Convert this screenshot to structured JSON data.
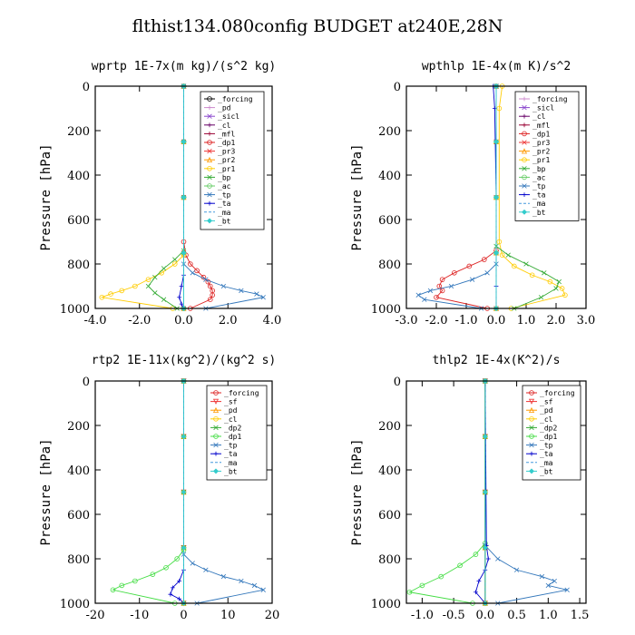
{
  "suptitle": "flthist134.080config  BUDGET at240E,28N",
  "chart_data": [
    {
      "type": "line",
      "title": "wprtp  1E-7x(m kg)/(s^2 kg)",
      "ylabel": "Pressure [hPa]",
      "xlim": [
        -4.0,
        4.0
      ],
      "ylim": [
        1000,
        0
      ],
      "xticks": [
        "-4.0",
        "-2.0",
        "0.0",
        "2.0",
        "4.0"
      ],
      "yticks": [
        "0",
        "200",
        "400",
        "600",
        "800",
        "1000"
      ],
      "legend_position": "top-right",
      "series": [
        {
          "name": "_forcing",
          "color": "#000000",
          "marker": "o",
          "x": [
            0,
            0,
            0,
            0,
            0
          ],
          "y": [
            0,
            250,
            500,
            750,
            1000
          ]
        },
        {
          "name": "_pd",
          "color": "#cc88cc",
          "marker": "+",
          "x": [
            0,
            0,
            0,
            0,
            0
          ],
          "y": [
            0,
            250,
            500,
            750,
            1000
          ]
        },
        {
          "name": "_sicl",
          "color": "#8844cc",
          "marker": "x",
          "x": [
            0,
            0,
            0,
            0,
            0
          ],
          "y": [
            0,
            250,
            500,
            750,
            1000
          ]
        },
        {
          "name": "_cl",
          "color": "#660066",
          "marker": "+",
          "x": [
            0,
            0,
            0,
            0,
            0
          ],
          "y": [
            0,
            250,
            500,
            750,
            1000
          ]
        },
        {
          "name": "_mfl",
          "color": "#990033",
          "marker": "+",
          "x": [
            0,
            0,
            0,
            0,
            0
          ],
          "y": [
            0,
            250,
            500,
            750,
            1000
          ]
        },
        {
          "name": "_dp1",
          "color": "#dd2222",
          "marker": "o",
          "x": [
            0,
            0,
            0.1,
            0.3,
            0.6,
            0.9,
            1.1,
            1.2,
            1.3,
            1.3,
            1.2,
            0.3
          ],
          "y": [
            0,
            700,
            760,
            800,
            830,
            860,
            880,
            900,
            920,
            940,
            960,
            1000
          ]
        },
        {
          "name": "_pr3",
          "color": "#ee3333",
          "marker": "x",
          "x": [
            0,
            0,
            0,
            0,
            0
          ],
          "y": [
            0,
            250,
            500,
            750,
            1000
          ]
        },
        {
          "name": "_pr2",
          "color": "#ff9900",
          "marker": "^",
          "x": [
            0,
            0,
            0,
            0,
            0
          ],
          "y": [
            0,
            250,
            500,
            750,
            1000
          ]
        },
        {
          "name": "_pr1",
          "color": "#ffcc00",
          "marker": "o",
          "x": [
            0,
            0,
            -0.4,
            -1.0,
            -1.6,
            -2.2,
            -2.8,
            -3.3,
            -3.7,
            -0.5
          ],
          "y": [
            0,
            760,
            800,
            840,
            870,
            900,
            920,
            935,
            950,
            1000
          ]
        },
        {
          "name": "_bp",
          "color": "#33aa33",
          "marker": "x",
          "x": [
            0,
            0,
            -0.4,
            -0.9,
            -1.3,
            -1.6,
            -1.3,
            -0.9,
            -0.3
          ],
          "y": [
            0,
            740,
            780,
            820,
            860,
            900,
            930,
            960,
            1000
          ]
        },
        {
          "name": "_ac",
          "color": "#66cc66",
          "marker": "o",
          "x": [
            0,
            0,
            0,
            0,
            0
          ],
          "y": [
            0,
            250,
            500,
            750,
            1000
          ]
        },
        {
          "name": "_tp",
          "color": "#3377bb",
          "marker": "x",
          "x": [
            0,
            0,
            0.4,
            1.0,
            1.8,
            2.6,
            3.3,
            3.6,
            1.0
          ],
          "y": [
            0,
            800,
            840,
            870,
            900,
            920,
            935,
            950,
            1000
          ]
        },
        {
          "name": "_ta",
          "color": "#0000cc",
          "marker": "+",
          "x": [
            0,
            0,
            -0.1,
            -0.2,
            -0.1,
            0
          ],
          "y": [
            0,
            850,
            900,
            950,
            980,
            1000
          ]
        },
        {
          "name": "_ma",
          "color": "#4499dd",
          "marker": "-",
          "x": [
            0,
            0,
            0,
            0,
            0
          ],
          "y": [
            0,
            250,
            500,
            750,
            1000
          ]
        },
        {
          "name": "_bt",
          "color": "#33cccc",
          "marker": "D",
          "x": [
            0,
            0,
            0,
            0,
            0
          ],
          "y": [
            0,
            250,
            500,
            750,
            1000
          ]
        }
      ]
    },
    {
      "type": "line",
      "title": "wpthlp  1E-4x(m K)/s^2",
      "ylabel": "Pressure [hPa]",
      "xlim": [
        -3.0,
        3.0
      ],
      "ylim": [
        1000,
        0
      ],
      "xticks": [
        "-3.0",
        "-2.0",
        "-1.0",
        "0.0",
        "1.0",
        "2.0",
        "3.0"
      ],
      "yticks": [
        "0",
        "200",
        "400",
        "600",
        "800",
        "1000"
      ],
      "legend_position": "top-right",
      "series": [
        {
          "name": "_forcing",
          "color": "#cc88cc",
          "marker": "+",
          "x": [
            0,
            0,
            0,
            0,
            0
          ],
          "y": [
            0,
            250,
            500,
            750,
            1000
          ]
        },
        {
          "name": "_sicl",
          "color": "#8844cc",
          "marker": "x",
          "x": [
            0,
            0,
            0,
            0,
            0
          ],
          "y": [
            0,
            250,
            500,
            750,
            1000
          ]
        },
        {
          "name": "_cl",
          "color": "#660066",
          "marker": "+",
          "x": [
            0,
            0,
            0,
            0,
            0
          ],
          "y": [
            0,
            250,
            500,
            750,
            1000
          ]
        },
        {
          "name": "_mfl",
          "color": "#990033",
          "marker": "+",
          "x": [
            0,
            0,
            0,
            0,
            0
          ],
          "y": [
            0,
            250,
            500,
            750,
            1000
          ]
        },
        {
          "name": "_dp1",
          "color": "#dd2222",
          "marker": "o",
          "x": [
            0,
            0,
            -0.4,
            -0.9,
            -1.4,
            -1.8,
            -1.9,
            -1.8,
            -2.0,
            -0.3
          ],
          "y": [
            0,
            740,
            780,
            810,
            840,
            870,
            900,
            920,
            950,
            1000
          ]
        },
        {
          "name": "_pr3",
          "color": "#ee3333",
          "marker": "x",
          "x": [
            0,
            0,
            0,
            0,
            0
          ],
          "y": [
            0,
            250,
            500,
            750,
            1000
          ]
        },
        {
          "name": "_pr2",
          "color": "#ff9900",
          "marker": "^",
          "x": [
            0,
            0,
            0,
            0,
            0
          ],
          "y": [
            0,
            250,
            500,
            750,
            1000
          ]
        },
        {
          "name": "_pr1",
          "color": "#ffcc00",
          "marker": "o",
          "x": [
            0.2,
            0.1,
            0.1,
            0.2,
            0.6,
            1.2,
            1.8,
            2.2,
            2.3,
            0.5
          ],
          "y": [
            0,
            100,
            700,
            760,
            810,
            850,
            880,
            910,
            940,
            1000
          ]
        },
        {
          "name": "_bp",
          "color": "#33aa33",
          "marker": "x",
          "x": [
            0,
            0,
            0.4,
            1.0,
            1.6,
            2.1,
            2.0,
            1.5,
            0.6
          ],
          "y": [
            0,
            720,
            760,
            800,
            840,
            880,
            910,
            950,
            1000
          ]
        },
        {
          "name": "_ac",
          "color": "#66cc66",
          "marker": "o",
          "x": [
            0,
            0,
            0,
            0,
            0
          ],
          "y": [
            0,
            250,
            500,
            750,
            1000
          ]
        },
        {
          "name": "_tp",
          "color": "#3377bb",
          "marker": "x",
          "x": [
            0,
            0,
            -0.3,
            -0.8,
            -1.5,
            -2.2,
            -2.6,
            -2.4,
            -0.5
          ],
          "y": [
            0,
            800,
            840,
            870,
            900,
            920,
            940,
            960,
            1000
          ]
        },
        {
          "name": "_ta",
          "color": "#0000cc",
          "marker": "+",
          "x": [
            -0.1,
            -0.05,
            0,
            0,
            0
          ],
          "y": [
            0,
            100,
            500,
            900,
            1000
          ]
        },
        {
          "name": "_ma",
          "color": "#4499dd",
          "marker": "-",
          "x": [
            0,
            0,
            0,
            0,
            0
          ],
          "y": [
            0,
            250,
            500,
            750,
            1000
          ]
        },
        {
          "name": "_bt",
          "color": "#33cccc",
          "marker": "D",
          "x": [
            0,
            0,
            0,
            0,
            0
          ],
          "y": [
            0,
            250,
            500,
            750,
            1000
          ]
        }
      ]
    },
    {
      "type": "line",
      "title": "rtp2  1E-11x(kg^2)/(kg^2 s)",
      "ylabel": "Pressure [hPa]",
      "xlim": [
        -20,
        20
      ],
      "ylim": [
        1000,
        0
      ],
      "xticks": [
        "-20",
        "-10",
        "0",
        "10",
        "20"
      ],
      "yticks": [
        "0",
        "200",
        "400",
        "600",
        "800",
        "1000"
      ],
      "legend_position": "top-right",
      "series": [
        {
          "name": "_forcing",
          "color": "#dd2222",
          "marker": "o",
          "x": [
            0,
            0,
            0,
            0,
            0
          ],
          "y": [
            0,
            250,
            500,
            750,
            1000
          ]
        },
        {
          "name": "_sf",
          "color": "#ee3333",
          "marker": "v",
          "x": [
            0,
            0,
            0,
            0,
            0
          ],
          "y": [
            0,
            250,
            500,
            750,
            1000
          ]
        },
        {
          "name": "_pd",
          "color": "#ff9900",
          "marker": "^",
          "x": [
            0,
            0,
            0,
            0,
            0
          ],
          "y": [
            0,
            250,
            500,
            750,
            1000
          ]
        },
        {
          "name": "_cl",
          "color": "#ffcc00",
          "marker": "o",
          "x": [
            0,
            0,
            0,
            0,
            0
          ],
          "y": [
            0,
            250,
            500,
            750,
            1000
          ]
        },
        {
          "name": "_dp2",
          "color": "#33aa33",
          "marker": "x",
          "x": [
            0,
            0,
            0,
            0,
            0
          ],
          "y": [
            0,
            250,
            500,
            750,
            1000
          ]
        },
        {
          "name": "_dp1",
          "color": "#44dd44",
          "marker": "o",
          "x": [
            0,
            0,
            -1.5,
            -4,
            -7,
            -11,
            -14,
            -16,
            -2
          ],
          "y": [
            0,
            760,
            800,
            840,
            870,
            900,
            920,
            940,
            1000
          ]
        },
        {
          "name": "_tp",
          "color": "#3377bb",
          "marker": "x",
          "x": [
            0,
            0,
            2,
            5,
            9,
            13,
            16,
            18,
            3
          ],
          "y": [
            0,
            780,
            820,
            850,
            880,
            900,
            920,
            940,
            1000
          ]
        },
        {
          "name": "_ta",
          "color": "#0000cc",
          "marker": "+",
          "x": [
            0,
            0,
            -1,
            -2.5,
            -3,
            -1,
            0
          ],
          "y": [
            0,
            850,
            900,
            930,
            960,
            980,
            1000
          ]
        },
        {
          "name": "_ma",
          "color": "#4499dd",
          "marker": "-",
          "x": [
            0,
            0,
            0,
            0,
            0
          ],
          "y": [
            0,
            250,
            500,
            750,
            1000
          ]
        },
        {
          "name": "_bt",
          "color": "#33cccc",
          "marker": "D",
          "x": [
            0,
            0,
            0,
            0,
            0
          ],
          "y": [
            0,
            250,
            500,
            750,
            1000
          ]
        }
      ]
    },
    {
      "type": "line",
      "title": "thlp2  1E-4x(K^2)/s",
      "ylabel": "Pressure [hPa]",
      "xlim": [
        -1.25,
        1.6
      ],
      "ylim": [
        1000,
        0
      ],
      "xticks": [
        "-1.0",
        "-0.5",
        "0.0",
        "0.5",
        "1.0",
        "1.5"
      ],
      "xtick_values": [
        -1.0,
        -0.5,
        0.0,
        0.5,
        1.0,
        1.5
      ],
      "yticks": [
        "0",
        "200",
        "400",
        "600",
        "800",
        "1000"
      ],
      "legend_position": "top-right",
      "series": [
        {
          "name": "_forcing",
          "color": "#dd2222",
          "marker": "o",
          "x": [
            0,
            0,
            0,
            0,
            0
          ],
          "y": [
            0,
            250,
            500,
            750,
            1000
          ]
        },
        {
          "name": "_sf",
          "color": "#ee3333",
          "marker": "v",
          "x": [
            0,
            0,
            0,
            0,
            0
          ],
          "y": [
            0,
            250,
            500,
            750,
            1000
          ]
        },
        {
          "name": "_pd",
          "color": "#ff9900",
          "marker": "^",
          "x": [
            0,
            0,
            0,
            0,
            0
          ],
          "y": [
            0,
            250,
            500,
            750,
            1000
          ]
        },
        {
          "name": "_cl",
          "color": "#ffcc00",
          "marker": "o",
          "x": [
            0,
            0,
            0,
            0,
            0
          ],
          "y": [
            0,
            250,
            500,
            750,
            1000
          ]
        },
        {
          "name": "_dp2",
          "color": "#33aa33",
          "marker": "x",
          "x": [
            0,
            0,
            0,
            0,
            0
          ],
          "y": [
            0,
            250,
            500,
            750,
            1000
          ]
        },
        {
          "name": "_dp1",
          "color": "#44dd44",
          "marker": "o",
          "x": [
            0,
            0,
            -0.15,
            -0.4,
            -0.7,
            -1.0,
            -1.2,
            -0.2
          ],
          "y": [
            0,
            730,
            780,
            830,
            880,
            920,
            950,
            1000
          ]
        },
        {
          "name": "_tp",
          "color": "#3377bb",
          "marker": "x",
          "x": [
            0,
            0,
            0.2,
            0.5,
            0.9,
            1.1,
            1.0,
            1.3,
            0.2
          ],
          "y": [
            0,
            740,
            800,
            850,
            880,
            900,
            920,
            940,
            1000
          ]
        },
        {
          "name": "_ta",
          "color": "#0000cc",
          "marker": "+",
          "x": [
            0,
            0.02,
            0.05,
            0.0,
            -0.1,
            -0.15,
            0.0
          ],
          "y": [
            0,
            740,
            800,
            850,
            900,
            950,
            1000
          ]
        },
        {
          "name": "_ma",
          "color": "#4499dd",
          "marker": "-",
          "x": [
            0,
            0,
            0,
            0,
            0
          ],
          "y": [
            0,
            250,
            500,
            750,
            1000
          ]
        },
        {
          "name": "_bt",
          "color": "#33cccc",
          "marker": "D",
          "x": [
            0,
            0,
            0,
            0,
            0
          ],
          "y": [
            0,
            250,
            500,
            750,
            1000
          ]
        }
      ]
    }
  ]
}
